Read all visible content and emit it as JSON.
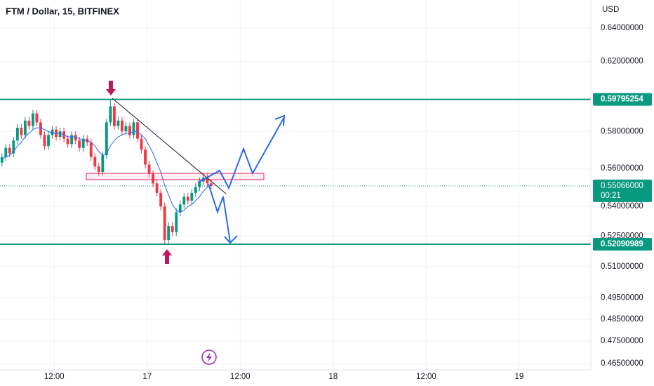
{
  "chart_data": {
    "type": "candlestick",
    "title": "FTM / Dollar, 15, BITFINEX",
    "y_axis_label": "USD",
    "log_scale": true,
    "grid": true,
    "xlim": [
      -28,
      277
    ],
    "xticks": [
      {
        "value": 0,
        "label": "12:00"
      },
      {
        "value": 48,
        "label": "17"
      },
      {
        "value": 96,
        "label": "12:00"
      },
      {
        "value": 144,
        "label": "18"
      },
      {
        "value": 192,
        "label": "12:00"
      },
      {
        "value": 240,
        "label": "19"
      }
    ],
    "ylim": [
      0.6573,
      0.4622
    ],
    "yticks": [
      {
        "value": 0.64,
        "label": "0.64000000"
      },
      {
        "value": 0.62,
        "label": "0.62000000"
      },
      {
        "value": 0.58,
        "label": "0.58000000"
      },
      {
        "value": 0.56,
        "label": "0.56000000"
      },
      {
        "value": 0.54,
        "label": "0.54000000"
      },
      {
        "value": 0.525,
        "label": "0.52500000"
      },
      {
        "value": 0.51,
        "label": "0.51000000"
      },
      {
        "value": 0.495,
        "label": "0.49500000"
      },
      {
        "value": 0.485,
        "label": "0.48500000"
      },
      {
        "value": 0.475,
        "label": "0.47500000"
      },
      {
        "value": 0.465,
        "label": "0.46500000"
      }
    ],
    "up_color": "#089981",
    "down_color": "#f23645",
    "x": [
      -27,
      -25,
      -23,
      -21,
      -19,
      -17,
      -15,
      -13,
      -11,
      -9,
      -7,
      -5,
      -3,
      -1,
      1,
      3,
      5,
      7,
      9,
      11,
      13,
      15,
      17,
      19,
      21,
      23,
      25,
      27,
      29,
      31,
      33,
      35,
      37,
      39,
      41,
      43,
      45,
      47,
      49,
      51,
      53,
      55,
      57,
      59,
      61,
      63,
      65,
      67,
      69,
      71,
      73,
      75,
      77,
      79,
      81
    ],
    "open": [
      0.563,
      0.566,
      0.571,
      0.568,
      0.575,
      0.582,
      0.578,
      0.586,
      0.583,
      0.59,
      0.585,
      0.578,
      0.572,
      0.578,
      0.581,
      0.577,
      0.58,
      0.576,
      0.573,
      0.578,
      0.575,
      0.571,
      0.576,
      0.574,
      0.566,
      0.561,
      0.558,
      0.567,
      0.585,
      0.594,
      0.583,
      0.586,
      0.58,
      0.583,
      0.578,
      0.585,
      0.576,
      0.57,
      0.562,
      0.557,
      0.552,
      0.547,
      0.54,
      0.523,
      0.53,
      0.527,
      0.537,
      0.541,
      0.545,
      0.543,
      0.547,
      0.55,
      0.553,
      0.555,
      0.552
    ],
    "high": [
      0.568,
      0.573,
      0.573,
      0.577,
      0.584,
      0.584,
      0.588,
      0.588,
      0.592,
      0.592,
      0.587,
      0.58,
      0.58,
      0.583,
      0.583,
      0.582,
      0.582,
      0.578,
      0.58,
      0.58,
      0.577,
      0.578,
      0.578,
      0.576,
      0.568,
      0.563,
      0.569,
      0.587,
      0.5975,
      0.596,
      0.588,
      0.588,
      0.585,
      0.585,
      0.587,
      0.587,
      0.578,
      0.572,
      0.564,
      0.559,
      0.554,
      0.549,
      0.542,
      0.532,
      0.532,
      0.539,
      0.543,
      0.547,
      0.547,
      0.549,
      0.552,
      0.555,
      0.557,
      0.557,
      0.554
    ],
    "low": [
      0.561,
      0.564,
      0.566,
      0.566,
      0.573,
      0.576,
      0.576,
      0.581,
      0.581,
      0.583,
      0.576,
      0.57,
      0.57,
      0.576,
      0.575,
      0.575,
      0.574,
      0.571,
      0.571,
      0.573,
      0.569,
      0.569,
      0.572,
      0.564,
      0.559,
      0.556,
      0.556,
      0.565,
      0.583,
      0.581,
      0.581,
      0.578,
      0.578,
      0.576,
      0.576,
      0.574,
      0.568,
      0.56,
      0.555,
      0.55,
      0.545,
      0.538,
      0.5209,
      0.521,
      0.525,
      0.525,
      0.535,
      0.539,
      0.541,
      0.541,
      0.545,
      0.548,
      0.551,
      0.55,
      0.549
    ],
    "close": [
      0.566,
      0.571,
      0.568,
      0.575,
      0.582,
      0.578,
      0.586,
      0.583,
      0.59,
      0.585,
      0.578,
      0.572,
      0.578,
      0.581,
      0.577,
      0.58,
      0.576,
      0.573,
      0.578,
      0.575,
      0.571,
      0.576,
      0.574,
      0.566,
      0.561,
      0.558,
      0.567,
      0.585,
      0.594,
      0.583,
      0.586,
      0.58,
      0.583,
      0.578,
      0.585,
      0.576,
      0.57,
      0.562,
      0.557,
      0.552,
      0.547,
      0.54,
      0.523,
      0.53,
      0.527,
      0.537,
      0.541,
      0.545,
      0.543,
      0.547,
      0.55,
      0.553,
      0.555,
      0.552,
      0.5507
    ],
    "moving_average": {
      "color": "#2962ff",
      "values": [
        0.565,
        0.566,
        0.567,
        0.569,
        0.572,
        0.574,
        0.577,
        0.579,
        0.581,
        0.582,
        0.582,
        0.581,
        0.58,
        0.579,
        0.579,
        0.579,
        0.578,
        0.577,
        0.577,
        0.577,
        0.576,
        0.575,
        0.575,
        0.574,
        0.572,
        0.569,
        0.567,
        0.568,
        0.572,
        0.575,
        0.577,
        0.578,
        0.579,
        0.579,
        0.58,
        0.58,
        0.578,
        0.576,
        0.572,
        0.568,
        0.563,
        0.558,
        0.551,
        0.546,
        0.541,
        0.538,
        0.537,
        0.538,
        0.54,
        0.541,
        0.543,
        0.545,
        0.548,
        0.55,
        0.551
      ]
    },
    "levels": [
      {
        "value": 0.59795254,
        "label": "0.59795254",
        "color": "#089981"
      },
      {
        "value": 0.52090989,
        "label": "0.52090989",
        "color": "#089981"
      }
    ],
    "last_price": {
      "value": 0.55066,
      "label": "0.55066000",
      "countdown": "00:21",
      "color": "#089981"
    }
  }
}
